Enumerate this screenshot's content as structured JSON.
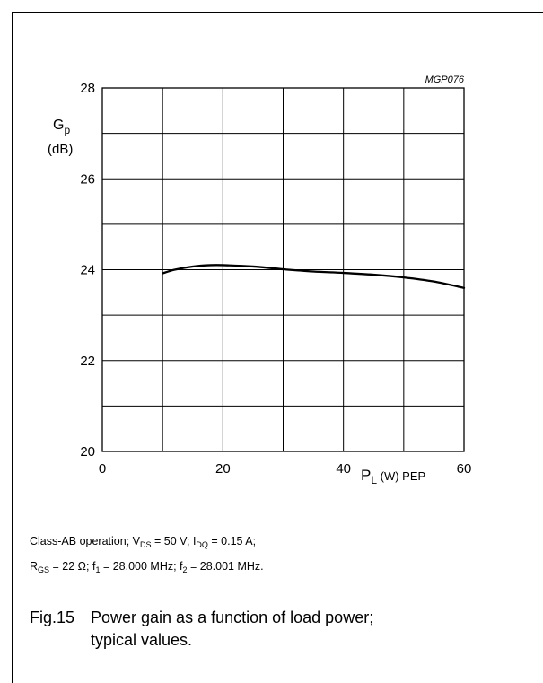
{
  "code_label": "MGP076",
  "chart_data": {
    "type": "line",
    "title": "",
    "xlabel": {
      "main": "P",
      "sub": "L",
      "rest": " (W) PEP"
    },
    "ylabel": {
      "line1_main": "G",
      "line1_sub": "p",
      "line2": "(dB)"
    },
    "xlim": [
      0,
      60
    ],
    "ylim": [
      20,
      28
    ],
    "xticks": [
      0,
      20,
      40,
      60
    ],
    "yticks": [
      20,
      22,
      24,
      26,
      28
    ],
    "grid": true,
    "grid_x_step": 10,
    "grid_y_step": 1,
    "series": [
      {
        "x": [
          10,
          12,
          15,
          18,
          20,
          25,
          30,
          35,
          40,
          45,
          50,
          55,
          60
        ],
        "y": [
          23.92,
          24.0,
          24.07,
          24.1,
          24.1,
          24.07,
          24.01,
          23.96,
          23.93,
          23.89,
          23.83,
          23.74,
          23.6
        ]
      }
    ]
  },
  "conditions": {
    "line1": {
      "a": "Class-AB operation; V",
      "a_sub": "DS",
      "b": " = 50 V;  I",
      "b_sub": "DQ",
      "c": " = 0.15 A;"
    },
    "line2": {
      "a": "R",
      "a_sub": "GS",
      "b": " = 22 Ω; f",
      "b_sub": "1",
      "c": " = 28.000 MHz; f",
      "c_sub": "2",
      "d": " = 28.001 MHz."
    }
  },
  "caption": {
    "fig": "Fig.15",
    "line1": "Power gain as a function of load power;",
    "line2": "typical values."
  }
}
